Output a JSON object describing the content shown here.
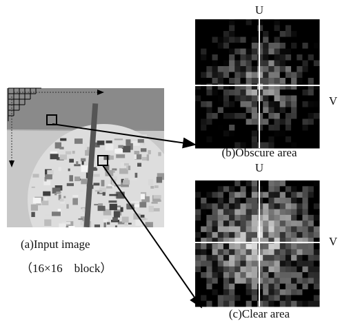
{
  "input": {
    "caption": "(a)Input image",
    "block_note": "（16×16　block）"
  },
  "obscure": {
    "u_label": "U",
    "v_label": "V",
    "caption": "(b)Obscure area"
  },
  "clear": {
    "u_label": "U",
    "v_label": "V",
    "caption": "(c)Clear area"
  }
}
